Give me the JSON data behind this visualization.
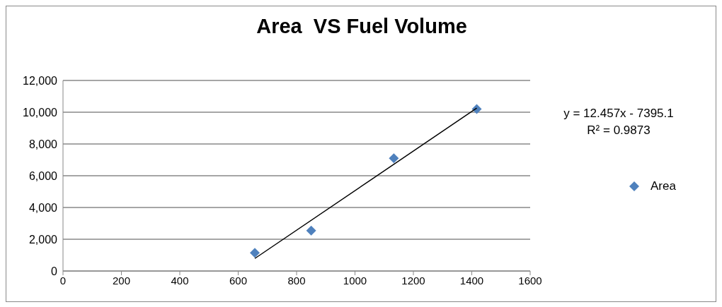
{
  "chart_data": {
    "type": "scatter",
    "title": "Area  VS Fuel Volume",
    "x": [
      657,
      850,
      1133,
      1417
    ],
    "series": [
      {
        "name": "Area",
        "color": "#4f81bd",
        "values": [
          1150,
          2550,
          7100,
          10200
        ],
        "marker": "diamond"
      },
      {
        "type": "line",
        "color": "#000000",
        "x": [
          657,
          1417
        ],
        "values": [
          789,
          10256
        ],
        "marker": "none"
      }
    ],
    "xlim": [
      0,
      1600
    ],
    "xticks": [
      0,
      200,
      400,
      600,
      800,
      1000,
      1200,
      1400,
      1600
    ],
    "ylim": [
      0,
      12000
    ],
    "yticks": [
      {
        "value": 0,
        "label": "0"
      },
      {
        "value": 2000,
        "label": "2,000"
      },
      {
        "value": 4000,
        "label": "4,000"
      },
      {
        "value": 6000,
        "label": "6,000"
      },
      {
        "value": 8000,
        "label": "8,000"
      },
      {
        "value": 10000,
        "label": "10,000"
      },
      {
        "value": 12000,
        "label": "12,000"
      }
    ],
    "grid": "y",
    "legend": "right",
    "annotations": [
      "y = 12.457x - 7395.1",
      "R² = 0.9873"
    ]
  }
}
